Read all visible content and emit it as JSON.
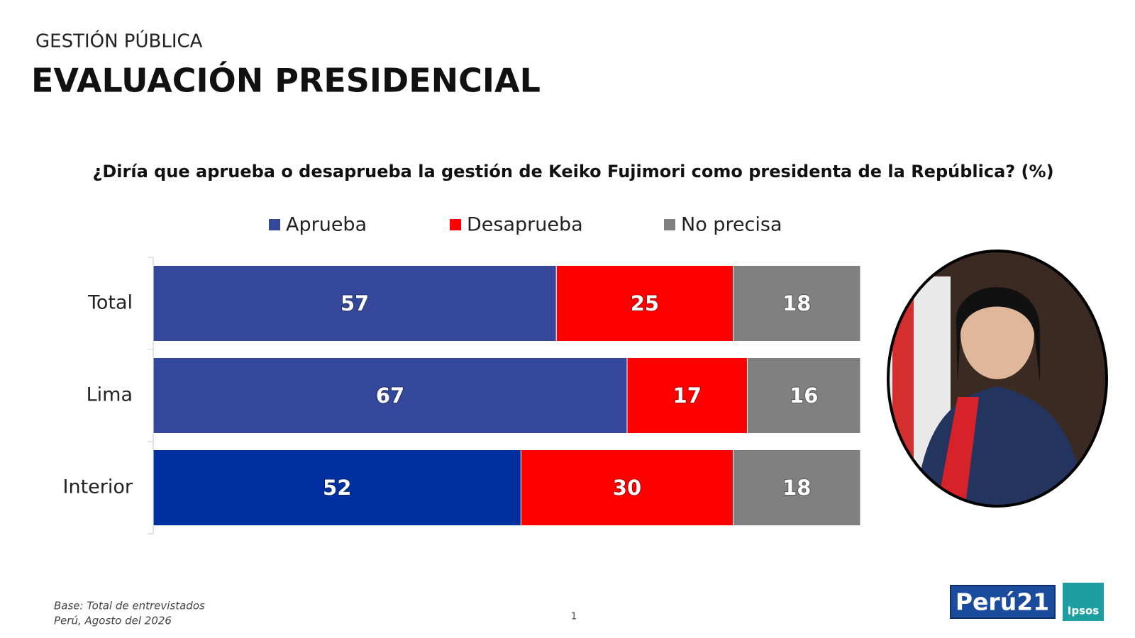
{
  "chart_data": {
    "type": "stacked-bar-horizontal",
    "kicker": "GESTIÓN PÚBLICA",
    "title": "EVALUACIÓN PRESIDENCIAL",
    "subtitle": "¿Diría que aprueba o desaprueba la gestión de Keiko Fujimori como presidenta de la República? (%)",
    "categories": [
      "Total",
      "Lima",
      "Interior"
    ],
    "series": [
      {
        "name": "Aprueba",
        "color": "#34479b",
        "colors": [
          "#34479b",
          "#34479b",
          "#0030a0"
        ],
        "values": [
          57,
          67,
          52
        ]
      },
      {
        "name": "Desaprueba",
        "color": "#ff0000",
        "values": [
          25,
          17,
          30
        ]
      },
      {
        "name": "No precisa",
        "color": "#808080",
        "values": [
          18,
          16,
          18
        ]
      }
    ],
    "xlim": [
      0,
      100
    ],
    "legend": "top",
    "notes": [
      "Base: Total de entrevistados",
      "Perú, Agosto del 2026"
    ],
    "page_number": 1,
    "logos": [
      "Perú21",
      "Ipsos"
    ]
  }
}
